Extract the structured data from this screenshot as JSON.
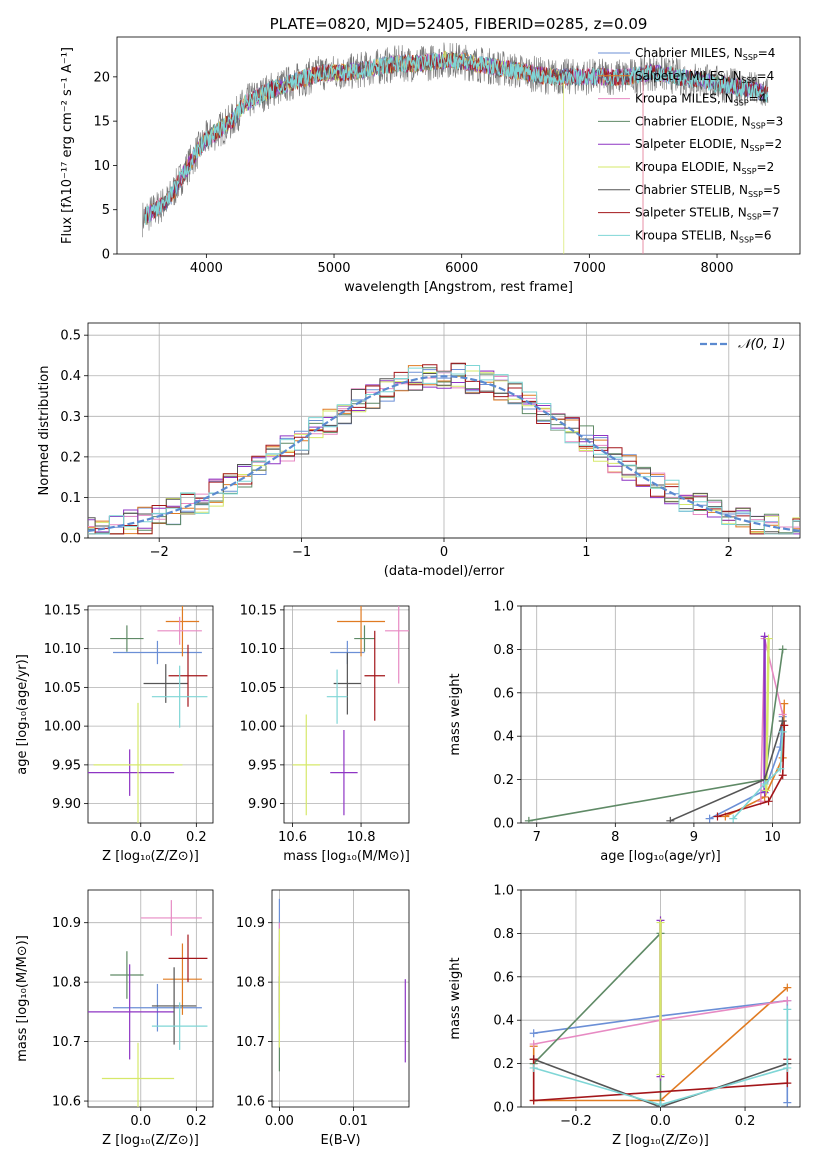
{
  "palette": [
    "#6b8fd6",
    "#e07b22",
    "#e78ac3",
    "#5f8a66",
    "#8e35c4",
    "#d6e86a",
    "#555555",
    "#a3161a",
    "#7fd6d6"
  ],
  "chart_data": [
    {
      "id": "spectrum",
      "type": "line",
      "title": "PLATE=0820, MJD=52405, FIBERID=0285, z=0.09",
      "xlabel": "wavelength [Angstrom, rest frame]",
      "ylabel": "Flux [fλ10⁻¹⁷ erg cm⁻² s⁻¹ A⁻¹]",
      "xlim": [
        3300,
        8650
      ],
      "ylim": [
        0,
        24.5
      ],
      "xticks": [
        4000,
        5000,
        6000,
        7000,
        8000
      ],
      "yticks": [
        0,
        5,
        10,
        15,
        20
      ],
      "continuum": {
        "x": [
          3500,
          3600,
          3700,
          3800,
          3900,
          4000,
          4100,
          4200,
          4300,
          4500,
          4700,
          4900,
          5100,
          5300,
          5500,
          5700,
          5900,
          6100,
          6300,
          6500,
          6700,
          6900,
          7100,
          7300,
          7500,
          7700,
          7900,
          8100,
          8300,
          8400
        ],
        "y": [
          4,
          5,
          6,
          8.5,
          11,
          13,
          14,
          15,
          17,
          18.5,
          19.5,
          20.5,
          20.5,
          21,
          21.5,
          21.5,
          22,
          21.5,
          21,
          20.5,
          20,
          20,
          20,
          20,
          20.5,
          20,
          19.5,
          19,
          18.5,
          18
        ]
      },
      "legend": [
        {
          "label": "Chabrier MILES, N",
          "sub": "SSP",
          "eq": "=4"
        },
        {
          "label": "Salpeter MILES, N",
          "sub": "SSP",
          "eq": "=4"
        },
        {
          "label": "Kroupa MILES, N",
          "sub": "SSP",
          "eq": "=4"
        },
        {
          "label": "Chabrier ELODIE, N",
          "sub": "SSP",
          "eq": "=3"
        },
        {
          "label": "Salpeter ELODIE, N",
          "sub": "SSP",
          "eq": "=2"
        },
        {
          "label": "Kroupa ELODIE, N",
          "sub": "SSP",
          "eq": "=2"
        },
        {
          "label": "Chabrier STELIB, N",
          "sub": "SSP",
          "eq": "=5"
        },
        {
          "label": "Salpeter STELIB, N",
          "sub": "SSP",
          "eq": "=7"
        },
        {
          "label": "Kroupa STELIB, N",
          "sub": "SSP",
          "eq": "=6"
        }
      ]
    },
    {
      "id": "residuals",
      "type": "histogram",
      "xlabel": "(data-model)/error",
      "ylabel": "Normed distribution",
      "xlim": [
        -2.5,
        2.5
      ],
      "ylim": [
        0,
        0.53
      ],
      "xticks": [
        -2,
        -1,
        0,
        1,
        2
      ],
      "yticks": [
        0.0,
        0.1,
        0.2,
        0.3,
        0.4,
        0.5
      ],
      "legend": "𝒩(0, 1)",
      "bin_width": 0.1
    },
    {
      "id": "age_vs_Z",
      "type": "errorbar",
      "xlabel": "Z [log₁₀(Z/Z⊙)]",
      "ylabel": "age  [log₁₀(age/yr)]",
      "xlim": [
        -0.19,
        0.26
      ],
      "ylim": [
        9.875,
        10.155
      ],
      "xticks": [
        0.0,
        0.2
      ],
      "yticks": [
        9.9,
        9.95,
        10.0,
        10.05,
        10.1,
        10.15
      ],
      "points": [
        {
          "x": 0.06,
          "xerr": 0.16,
          "y": 10.095,
          "yerr": 0.015
        },
        {
          "x": 0.15,
          "xerr": 0.06,
          "y": 10.135,
          "yerr": 0.045
        },
        {
          "x": 0.14,
          "xerr": 0.08,
          "y": 10.123,
          "yerr": 0.018
        },
        {
          "x": -0.05,
          "xerr": 0.06,
          "y": 10.113,
          "yerr": 0.017
        },
        {
          "x": -0.04,
          "xerr": 0.16,
          "y": 9.94,
          "yerr": 0.03
        },
        {
          "x": -0.01,
          "xerr": 0.16,
          "y": 9.95,
          "yerr": 0.08
        },
        {
          "x": 0.09,
          "xerr": 0.08,
          "y": 10.055,
          "yerr": 0.025
        },
        {
          "x": 0.17,
          "xerr": 0.07,
          "y": 10.065,
          "yerr": 0.04
        },
        {
          "x": 0.14,
          "xerr": 0.1,
          "y": 10.038,
          "yerr": 0.04
        }
      ]
    },
    {
      "id": "age_vs_mass",
      "type": "errorbar",
      "xlabel": "mass [log₁₀(M/M⊙)]",
      "ylabel": "",
      "xlim": [
        10.575,
        10.94
      ],
      "ylim": [
        9.875,
        10.155
      ],
      "xticks": [
        10.6,
        10.8
      ],
      "yticks": [
        9.9,
        9.95,
        10.0,
        10.05,
        10.1,
        10.15
      ],
      "points": [
        {
          "x": 10.76,
          "xerr": 0.05,
          "y": 10.095,
          "yerr": 0.015
        },
        {
          "x": 10.8,
          "xerr": 0.07,
          "y": 10.135,
          "yerr": 0.045
        },
        {
          "x": 10.91,
          "xerr": 0.04,
          "y": 10.123,
          "yerr": 0.068
        },
        {
          "x": 10.81,
          "xerr": 0.03,
          "y": 10.113,
          "yerr": 0.017
        },
        {
          "x": 10.75,
          "xerr": 0.04,
          "y": 9.94,
          "yerr": 0.055
        },
        {
          "x": 10.64,
          "xerr": 0.04,
          "y": 9.95,
          "yerr": 0.065
        },
        {
          "x": 10.76,
          "xerr": 0.04,
          "y": 10.055,
          "yerr": 0.04
        },
        {
          "x": 10.84,
          "xerr": 0.03,
          "y": 10.065,
          "yerr": 0.058
        },
        {
          "x": 10.73,
          "xerr": 0.03,
          "y": 10.038,
          "yerr": 0.035
        }
      ]
    },
    {
      "id": "weight_vs_age",
      "type": "line",
      "xlabel": "age  [log₁₀(age/yr)]",
      "ylabel": "mass weight",
      "xlim": [
        6.8,
        10.35
      ],
      "ylim": [
        0,
        1.0
      ],
      "xticks": [
        7,
        8,
        9,
        10
      ],
      "yticks": [
        0.0,
        0.2,
        0.4,
        0.6,
        0.8,
        1.0
      ],
      "series": [
        {
          "x": [
            9.2,
            9.9,
            10.1,
            10.13
          ],
          "y": [
            0.02,
            0.15,
            0.35,
            0.49
          ]
        },
        {
          "x": [
            9.4,
            9.9,
            10.13,
            10.15
          ],
          "y": [
            0.03,
            0.12,
            0.3,
            0.55
          ]
        },
        {
          "x": [
            9.85,
            9.9,
            10.13
          ],
          "y": [
            0.1,
            0.85,
            0.5
          ]
        },
        {
          "x": [
            6.9,
            9.9,
            10.13
          ],
          "y": [
            0.01,
            0.2,
            0.8
          ]
        },
        {
          "x": [
            9.9,
            9.9
          ],
          "y": [
            0.14,
            0.86
          ]
        },
        {
          "x": [
            9.92,
            9.95
          ],
          "y": [
            0.15,
            0.85
          ]
        },
        {
          "x": [
            8.7,
            9.9,
            10.13
          ],
          "y": [
            0.01,
            0.2,
            0.47
          ]
        },
        {
          "x": [
            9.3,
            9.95,
            10.13,
            10.15
          ],
          "y": [
            0.03,
            0.1,
            0.22,
            0.45
          ]
        },
        {
          "x": [
            9.5,
            9.9,
            10.1,
            10.13
          ],
          "y": [
            0.02,
            0.18,
            0.25,
            0.42
          ]
        }
      ]
    },
    {
      "id": "mass_vs_Z",
      "type": "errorbar",
      "xlabel": "Z [log₁₀(Z/Z⊙)]",
      "ylabel": "mass [log₁₀(M/M⊙)]",
      "xlim": [
        -0.19,
        0.26
      ],
      "ylim": [
        10.59,
        10.955
      ],
      "xticks": [
        0.0,
        0.2
      ],
      "yticks": [
        10.6,
        10.7,
        10.8,
        10.9
      ],
      "points": [
        {
          "x": 0.06,
          "xerr": 0.16,
          "y": 10.757,
          "yerr": 0.04
        },
        {
          "x": 0.15,
          "xerr": 0.07,
          "y": 10.805,
          "yerr": 0.06
        },
        {
          "x": 0.11,
          "xerr": 0.11,
          "y": 10.908,
          "yerr": 0.03
        },
        {
          "x": -0.05,
          "xerr": 0.06,
          "y": 10.812,
          "yerr": 0.04
        },
        {
          "x": -0.04,
          "xerr": 0.16,
          "y": 10.75,
          "yerr": 0.08
        },
        {
          "x": -0.01,
          "xerr": 0.13,
          "y": 10.638,
          "yerr": 0.06
        },
        {
          "x": 0.12,
          "xerr": 0.08,
          "y": 10.76,
          "yerr": 0.065
        },
        {
          "x": 0.17,
          "xerr": 0.07,
          "y": 10.84,
          "yerr": 0.04
        },
        {
          "x": 0.14,
          "xerr": 0.1,
          "y": 10.726,
          "yerr": 0.04
        }
      ]
    },
    {
      "id": "mass_vs_EBV",
      "type": "errorbar",
      "xlabel": "E(B-V)",
      "ylabel": "",
      "xlim": [
        -0.001,
        0.0175
      ],
      "ylim": [
        10.59,
        10.955
      ],
      "xticks": [
        0.0,
        0.01
      ],
      "yticks": [
        10.6,
        10.7,
        10.8,
        10.9
      ],
      "points": [
        {
          "x": 0.0,
          "xerr": 0.0,
          "y": 10.83,
          "yerr": 0.11
        },
        {
          "x": 0.0,
          "xerr": 0.0,
          "y": 10.808,
          "yerr": 0.06
        },
        {
          "x": 0.0,
          "xerr": 0.0,
          "y": 10.82,
          "yerr": 0.08
        },
        {
          "x": 0.0,
          "xerr": 0.0,
          "y": 10.73,
          "yerr": 0.08
        },
        {
          "x": 0.017,
          "xerr": 0.0,
          "y": 10.735,
          "yerr": 0.07
        },
        {
          "x": 0.0,
          "xerr": 0.0,
          "y": 10.79,
          "yerr": 0.1
        }
      ]
    },
    {
      "id": "weight_vs_Z",
      "type": "line",
      "xlabel": "Z [log₁₀(Z/Z⊙)]",
      "ylabel": "mass weight",
      "xlim": [
        -0.33,
        0.33
      ],
      "ylim": [
        0,
        1.0
      ],
      "xticks": [
        -0.2,
        0.0,
        0.2
      ],
      "yticks": [
        0.0,
        0.2,
        0.4,
        0.6,
        0.8,
        1.0
      ],
      "series": [
        {
          "x": [
            -0.3,
            0.0,
            0.3,
            0.3
          ],
          "y": [
            0.34,
            0.42,
            0.49,
            0.02
          ]
        },
        {
          "x": [
            -0.3,
            -0.3,
            0.0,
            0.3
          ],
          "y": [
            0.28,
            0.03,
            0.03,
            0.55
          ]
        },
        {
          "x": [
            -0.3,
            0.0,
            0.3
          ],
          "y": [
            0.29,
            0.4,
            0.49
          ]
        },
        {
          "x": [
            -0.3,
            0.0,
            0.0
          ],
          "y": [
            0.2,
            0.8,
            0.01
          ]
        },
        {
          "x": [
            0.0,
            0.0
          ],
          "y": [
            0.14,
            0.86
          ]
        },
        {
          "x": [
            0.0,
            0.0
          ],
          "y": [
            0.15,
            0.85
          ]
        },
        {
          "x": [
            -0.3,
            0.0,
            0.3
          ],
          "y": [
            0.22,
            0.0,
            0.2
          ]
        },
        {
          "x": [
            -0.3,
            -0.3,
            0.3,
            0.3
          ],
          "y": [
            0.22,
            0.03,
            0.11,
            0.22
          ]
        },
        {
          "x": [
            -0.3,
            0.0,
            0.3,
            0.3
          ],
          "y": [
            0.18,
            0.01,
            0.18,
            0.45
          ]
        }
      ]
    }
  ]
}
